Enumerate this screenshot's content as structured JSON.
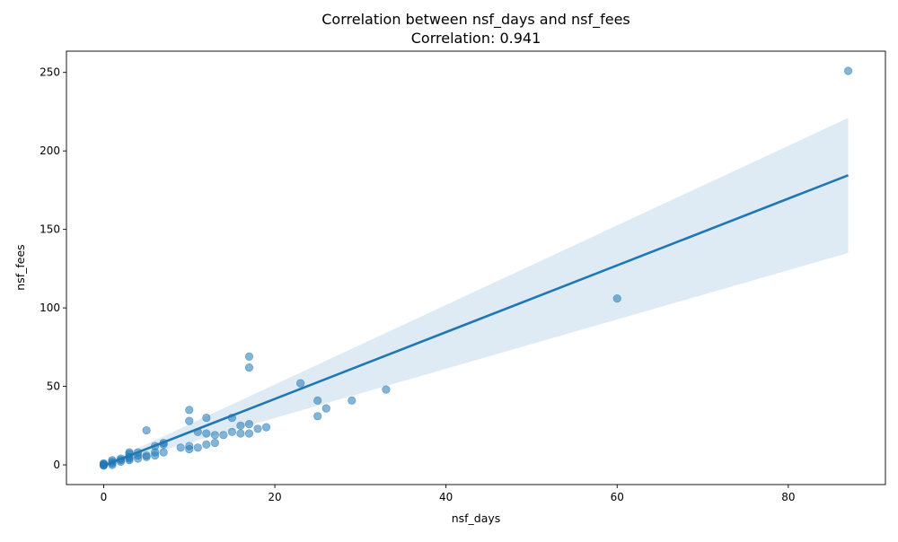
{
  "chart_data": {
    "type": "scatter",
    "title": "Correlation between nsf_days and nsf_fees",
    "subtitle": "Correlation: 0.941",
    "xlabel": "nsf_days",
    "ylabel": "nsf_fees",
    "xlim": [
      -4.35,
      91.35
    ],
    "ylim": [
      -12.55,
      263.55
    ],
    "xticks": [
      0,
      20,
      40,
      60,
      80
    ],
    "yticks": [
      0,
      50,
      100,
      150,
      200,
      250
    ],
    "grid": false,
    "colors": {
      "points": "#1f77b4",
      "line": "#1f77b4",
      "band": "#1f77b4"
    },
    "regression": {
      "x": [
        0,
        87
      ],
      "y": [
        -0.5,
        184.5
      ]
    },
    "confidence_band": {
      "x": [
        0,
        87
      ],
      "upper": [
        0.5,
        221
      ],
      "lower": [
        -1.5,
        135
      ]
    },
    "points": {
      "x": [
        87,
        60,
        17,
        17,
        23,
        33,
        29,
        25,
        26,
        25,
        10,
        10,
        12,
        15,
        5,
        17,
        16,
        19,
        18,
        17,
        16,
        15,
        14,
        13,
        12,
        11,
        13,
        12,
        11,
        10,
        10,
        9,
        7,
        7,
        7,
        6,
        6,
        6,
        5,
        5,
        4,
        4,
        4,
        3,
        3,
        3,
        3,
        3,
        2,
        2,
        2,
        1,
        1,
        1,
        1,
        0,
        0,
        0,
        0,
        0
      ],
      "y": [
        251,
        106,
        69,
        62,
        52,
        48,
        41,
        41,
        36,
        31,
        35,
        28,
        30,
        30,
        22,
        26,
        25,
        24,
        23,
        20,
        20,
        21,
        19,
        19,
        20,
        21,
        14,
        13,
        11,
        12,
        10,
        11,
        14,
        13,
        8,
        12,
        8,
        6,
        6,
        5,
        8,
        6,
        4,
        8,
        7,
        5,
        4,
        3,
        4,
        3,
        2,
        3,
        2,
        1,
        0,
        1,
        0.5,
        0,
        0,
        -0.5
      ]
    }
  }
}
